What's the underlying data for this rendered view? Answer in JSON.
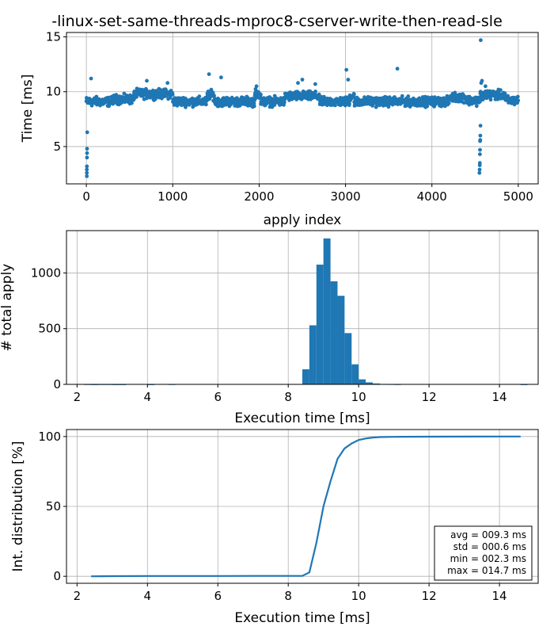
{
  "figure": {
    "title": "-linux-set-same-threads-mproc8-cserver-write-then-read-sle"
  },
  "chart_data": [
    {
      "type": "scatter",
      "xlabel": "apply index",
      "ylabel": "Time [ms]",
      "xlim": [
        -230,
        5230
      ],
      "ylim": [
        1.6,
        15.4
      ],
      "xticks": [
        0,
        1000,
        2000,
        3000,
        4000,
        5000
      ],
      "yticks": [
        5,
        10,
        15
      ],
      "grid": true,
      "color": "#1f77b4",
      "n_points": 5000,
      "levels": [
        {
          "x0": 0,
          "x1": 300,
          "y": 9.1
        },
        {
          "x0": 300,
          "x1": 550,
          "y": 9.3
        },
        {
          "x0": 550,
          "x1": 1000,
          "y": 9.8
        },
        {
          "x0": 1000,
          "x1": 1400,
          "y": 9.1
        },
        {
          "x0": 1400,
          "x1": 1480,
          "y": 9.7
        },
        {
          "x0": 1480,
          "x1": 1950,
          "y": 9.1
        },
        {
          "x0": 1950,
          "x1": 2020,
          "y": 9.8
        },
        {
          "x0": 2020,
          "x1": 2300,
          "y": 9.1
        },
        {
          "x0": 2300,
          "x1": 2700,
          "y": 9.6
        },
        {
          "x0": 2700,
          "x1": 3050,
          "y": 9.1
        },
        {
          "x0": 3050,
          "x1": 3100,
          "y": 9.6
        },
        {
          "x0": 3100,
          "x1": 4200,
          "y": 9.1
        },
        {
          "x0": 4200,
          "x1": 4400,
          "y": 9.5
        },
        {
          "x0": 4400,
          "x1": 4560,
          "y": 9.2
        },
        {
          "x0": 4560,
          "x1": 4850,
          "y": 9.7
        },
        {
          "x0": 4850,
          "x1": 5000,
          "y": 9.2
        }
      ],
      "spread": 0.3,
      "outliers": [
        {
          "x": 5,
          "y": 2.3
        },
        {
          "x": 5,
          "y": 2.6
        },
        {
          "x": 5,
          "y": 2.9
        },
        {
          "x": 6,
          "y": 3.2
        },
        {
          "x": 7,
          "y": 4.0
        },
        {
          "x": 8,
          "y": 4.4
        },
        {
          "x": 8,
          "y": 4.8
        },
        {
          "x": 10,
          "y": 6.3
        },
        {
          "x": 55,
          "y": 11.2
        },
        {
          "x": 700,
          "y": 11.0
        },
        {
          "x": 940,
          "y": 10.8
        },
        {
          "x": 1420,
          "y": 11.6
        },
        {
          "x": 1560,
          "y": 11.3
        },
        {
          "x": 1970,
          "y": 10.5
        },
        {
          "x": 2450,
          "y": 10.8
        },
        {
          "x": 2500,
          "y": 11.1
        },
        {
          "x": 2650,
          "y": 10.7
        },
        {
          "x": 3010,
          "y": 12.0
        },
        {
          "x": 3030,
          "y": 11.1
        },
        {
          "x": 3600,
          "y": 12.1
        },
        {
          "x": 4550,
          "y": 2.6
        },
        {
          "x": 4552,
          "y": 2.9
        },
        {
          "x": 4554,
          "y": 3.3
        },
        {
          "x": 4555,
          "y": 3.5
        },
        {
          "x": 4556,
          "y": 4.3
        },
        {
          "x": 4557,
          "y": 4.7
        },
        {
          "x": 4558,
          "y": 5.5
        },
        {
          "x": 4559,
          "y": 5.6
        },
        {
          "x": 4560,
          "y": 6.0
        },
        {
          "x": 4562,
          "y": 6.9
        },
        {
          "x": 4565,
          "y": 14.7
        },
        {
          "x": 4570,
          "y": 10.8
        },
        {
          "x": 4580,
          "y": 11.0
        },
        {
          "x": 4620,
          "y": 10.5
        }
      ]
    },
    {
      "type": "bar",
      "xlabel": "Execution time [ms]",
      "ylabel": "# total apply",
      "xlim": [
        1.7,
        15.1
      ],
      "ylim": [
        0,
        1380
      ],
      "xticks": [
        2,
        4,
        6,
        8,
        10,
        12,
        14
      ],
      "yticks": [
        0,
        500,
        1000
      ],
      "grid": true,
      "color": "#1f77b4",
      "bin_width": 0.2,
      "bins": [
        {
          "x": 2.3,
          "count": 2
        },
        {
          "x": 2.5,
          "count": 1
        },
        {
          "x": 2.7,
          "count": 2
        },
        {
          "x": 2.9,
          "count": 2
        },
        {
          "x": 3.1,
          "count": 1
        },
        {
          "x": 3.3,
          "count": 1
        },
        {
          "x": 4.1,
          "count": 1
        },
        {
          "x": 4.7,
          "count": 2
        },
        {
          "x": 8.5,
          "count": 135
        },
        {
          "x": 8.7,
          "count": 530
        },
        {
          "x": 8.9,
          "count": 1075
        },
        {
          "x": 9.1,
          "count": 1310
        },
        {
          "x": 9.3,
          "count": 925
        },
        {
          "x": 9.5,
          "count": 795
        },
        {
          "x": 9.7,
          "count": 460
        },
        {
          "x": 9.9,
          "count": 180
        },
        {
          "x": 10.1,
          "count": 45
        },
        {
          "x": 10.3,
          "count": 18
        },
        {
          "x": 10.5,
          "count": 8
        },
        {
          "x": 10.7,
          "count": 4
        },
        {
          "x": 10.9,
          "count": 3
        },
        {
          "x": 11.1,
          "count": 2
        },
        {
          "x": 14.7,
          "count": 1
        }
      ]
    },
    {
      "type": "line",
      "xlabel": "Execution time [ms]",
      "ylabel": "Int. distribution [%]",
      "xlim": [
        1.7,
        15.1
      ],
      "ylim": [
        -5,
        105
      ],
      "xticks": [
        2,
        4,
        6,
        8,
        10,
        12,
        14
      ],
      "yticks": [
        0,
        50,
        100
      ],
      "grid": true,
      "color": "#1f77b4",
      "x": [
        2.4,
        3.0,
        4.0,
        5.0,
        6.0,
        7.0,
        8.0,
        8.4,
        8.6,
        8.8,
        9.0,
        9.2,
        9.4,
        9.6,
        9.8,
        10.0,
        10.2,
        10.4,
        10.6,
        11.0,
        12.0,
        13.0,
        14.6
      ],
      "values": [
        0.0,
        0.1,
        0.2,
        0.2,
        0.2,
        0.3,
        0.3,
        0.3,
        2.8,
        24.0,
        50.0,
        68.0,
        84.0,
        91.5,
        95.0,
        97.5,
        98.6,
        99.3,
        99.6,
        99.8,
        99.9,
        99.95,
        100.0
      ],
      "stats": {
        "avg": "avg = 009.3 ms",
        "std": "std = 000.6 ms",
        "min": "min = 002.3 ms",
        "max": "max = 014.7 ms"
      }
    }
  ]
}
